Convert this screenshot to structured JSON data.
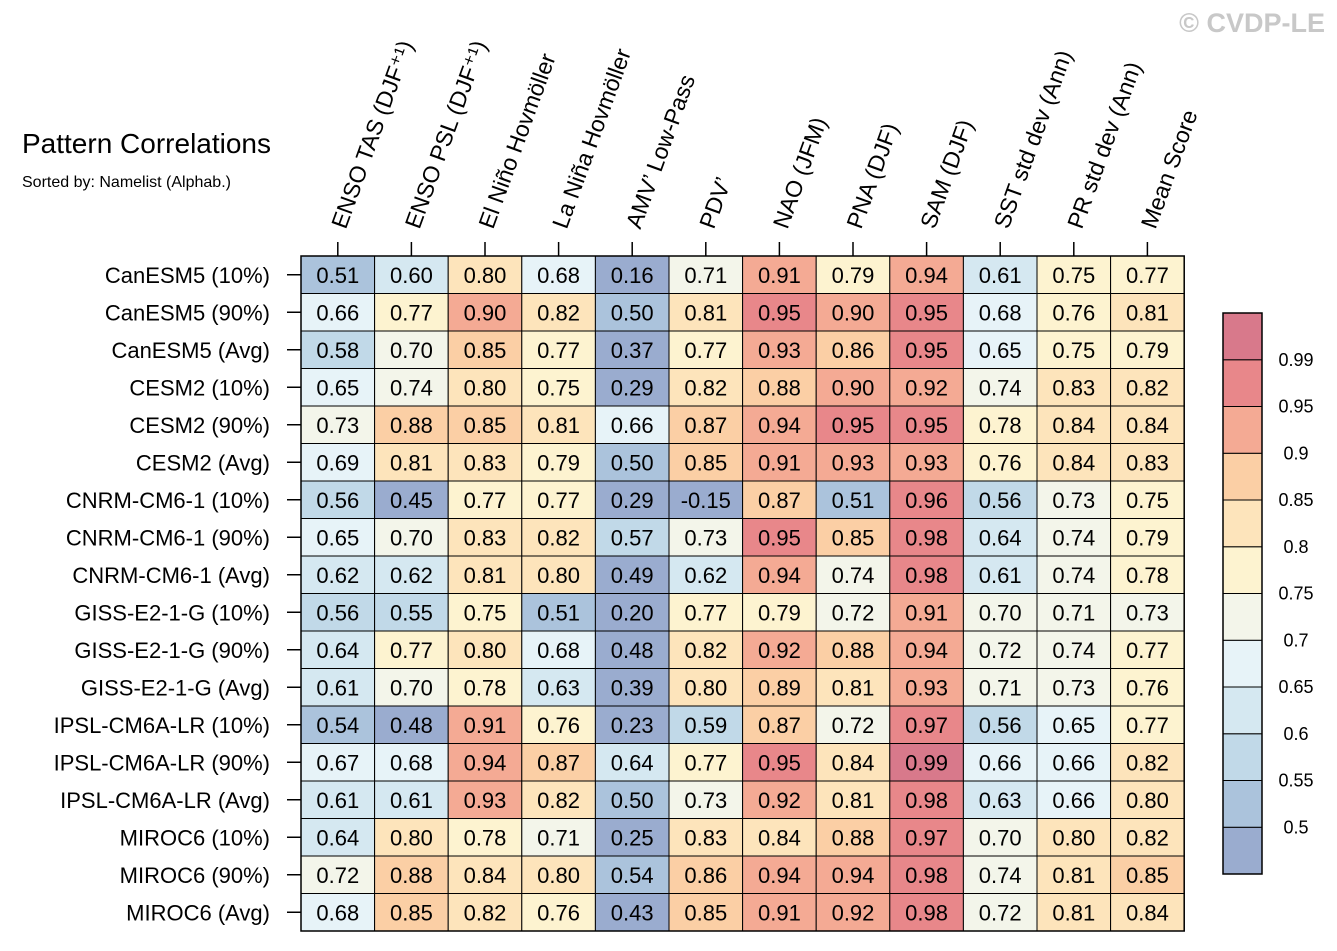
{
  "watermark": "© CVDP-LE",
  "chart_data": {
    "type": "heatmap",
    "title": "Pattern Correlations",
    "subtitle": "Sorted by: Namelist (Alphab.)",
    "columns": [
      "ENSO TAS (DJF⁺¹)",
      "ENSO PSL (DJF⁺¹)",
      "El Niño Hovmöller",
      "La Niña Hovmöller",
      "AMV’ Low-Pass",
      "PDV’",
      "NAO (JFM)",
      "PNA (DJF)",
      "SAM (DJF)",
      "SST std dev (Ann)",
      "PR std dev (Ann)",
      "Mean Score"
    ],
    "rows": [
      "CanESM5 (10%)",
      "CanESM5 (90%)",
      "CanESM5 (Avg)",
      "CESM2 (10%)",
      "CESM2 (90%)",
      "CESM2 (Avg)",
      "CNRM-CM6-1 (10%)",
      "CNRM-CM6-1 (90%)",
      "CNRM-CM6-1 (Avg)",
      "GISS-E2-1-G (10%)",
      "GISS-E2-1-G (90%)",
      "GISS-E2-1-G (Avg)",
      "IPSL-CM6A-LR (10%)",
      "IPSL-CM6A-LR (90%)",
      "IPSL-CM6A-LR (Avg)",
      "MIROC6 (10%)",
      "MIROC6 (90%)",
      "MIROC6 (Avg)"
    ],
    "values": [
      [
        "0.51",
        "0.60",
        "0.80",
        "0.68",
        "0.16",
        "0.71",
        "0.91",
        "0.79",
        "0.94",
        "0.61",
        "0.75",
        "0.77"
      ],
      [
        "0.66",
        "0.77",
        "0.90",
        "0.82",
        "0.50",
        "0.81",
        "0.95",
        "0.90",
        "0.95",
        "0.68",
        "0.76",
        "0.81"
      ],
      [
        "0.58",
        "0.70",
        "0.85",
        "0.77",
        "0.37",
        "0.77",
        "0.93",
        "0.86",
        "0.95",
        "0.65",
        "0.75",
        "0.79"
      ],
      [
        "0.65",
        "0.74",
        "0.80",
        "0.75",
        "0.29",
        "0.82",
        "0.88",
        "0.90",
        "0.92",
        "0.74",
        "0.83",
        "0.82"
      ],
      [
        "0.73",
        "0.88",
        "0.85",
        "0.81",
        "0.66",
        "0.87",
        "0.94",
        "0.95",
        "0.95",
        "0.78",
        "0.84",
        "0.84"
      ],
      [
        "0.69",
        "0.81",
        "0.83",
        "0.79",
        "0.50",
        "0.85",
        "0.91",
        "0.93",
        "0.93",
        "0.76",
        "0.84",
        "0.83"
      ],
      [
        "0.56",
        "0.45",
        "0.77",
        "0.77",
        "0.29",
        "-0.15",
        "0.87",
        "0.51",
        "0.96",
        "0.56",
        "0.73",
        "0.75"
      ],
      [
        "0.65",
        "0.70",
        "0.83",
        "0.82",
        "0.57",
        "0.73",
        "0.95",
        "0.85",
        "0.98",
        "0.64",
        "0.74",
        "0.79"
      ],
      [
        "0.62",
        "0.62",
        "0.81",
        "0.80",
        "0.49",
        "0.62",
        "0.94",
        "0.74",
        "0.98",
        "0.61",
        "0.74",
        "0.78"
      ],
      [
        "0.56",
        "0.55",
        "0.75",
        "0.51",
        "0.20",
        "0.77",
        "0.79",
        "0.72",
        "0.91",
        "0.70",
        "0.71",
        "0.73"
      ],
      [
        "0.64",
        "0.77",
        "0.80",
        "0.68",
        "0.48",
        "0.82",
        "0.92",
        "0.88",
        "0.94",
        "0.72",
        "0.74",
        "0.77"
      ],
      [
        "0.61",
        "0.70",
        "0.78",
        "0.63",
        "0.39",
        "0.80",
        "0.89",
        "0.81",
        "0.93",
        "0.71",
        "0.73",
        "0.76"
      ],
      [
        "0.54",
        "0.48",
        "0.91",
        "0.76",
        "0.23",
        "0.59",
        "0.87",
        "0.72",
        "0.97",
        "0.56",
        "0.65",
        "0.77"
      ],
      [
        "0.67",
        "0.68",
        "0.94",
        "0.87",
        "0.64",
        "0.77",
        "0.95",
        "0.84",
        "0.99",
        "0.66",
        "0.66",
        "0.82"
      ],
      [
        "0.61",
        "0.61",
        "0.93",
        "0.82",
        "0.50",
        "0.73",
        "0.92",
        "0.81",
        "0.98",
        "0.63",
        "0.66",
        "0.80"
      ],
      [
        "0.64",
        "0.80",
        "0.78",
        "0.71",
        "0.25",
        "0.83",
        "0.84",
        "0.88",
        "0.97",
        "0.70",
        "0.80",
        "0.82"
      ],
      [
        "0.72",
        "0.88",
        "0.84",
        "0.80",
        "0.54",
        "0.86",
        "0.94",
        "0.94",
        "0.98",
        "0.74",
        "0.81",
        "0.85"
      ],
      [
        "0.68",
        "0.85",
        "0.82",
        "0.76",
        "0.43",
        "0.85",
        "0.91",
        "0.92",
        "0.98",
        "0.72",
        "0.81",
        "0.84"
      ]
    ],
    "colorbar": {
      "levels": [
        "0.5",
        "0.55",
        "0.6",
        "0.65",
        "0.7",
        "0.75",
        "0.8",
        "0.85",
        "0.9",
        "0.95",
        "0.99"
      ],
      "colors": [
        "#9aaccf",
        "#abc3dc",
        "#c1d9e8",
        "#d5e8f1",
        "#e7f3f8",
        "#f3f5ea",
        "#fdf3d0",
        "#fde4bb",
        "#fbcfa5",
        "#f4aa94",
        "#e8878a",
        "#d8798b"
      ]
    }
  }
}
